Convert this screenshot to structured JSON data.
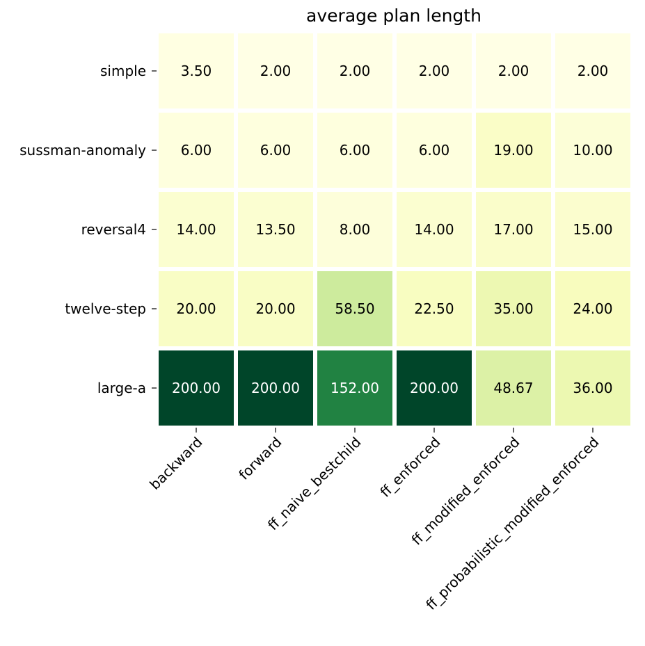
{
  "chart_data": {
    "type": "heatmap",
    "title": "average plan length",
    "xlabel": "",
    "ylabel": "",
    "x_categories": [
      "backward",
      "forward",
      "ff_naive_bestchild",
      "ff_enforced",
      "ff_modified_enforced",
      "ff_probabilistic_modified_enforced"
    ],
    "y_categories": [
      "simple",
      "sussman-anomaly",
      "reversal4",
      "twelve-step",
      "large-a"
    ],
    "values": [
      [
        3.5,
        2.0,
        2.0,
        2.0,
        2.0,
        2.0
      ],
      [
        6.0,
        6.0,
        6.0,
        6.0,
        19.0,
        10.0
      ],
      [
        14.0,
        13.5,
        8.0,
        14.0,
        17.0,
        15.0
      ],
      [
        20.0,
        20.0,
        58.5,
        22.5,
        35.0,
        24.0
      ],
      [
        200.0,
        200.0,
        152.0,
        200.0,
        48.67,
        36.0
      ]
    ],
    "value_labels": [
      [
        "3.50",
        "2.00",
        "2.00",
        "2.00",
        "2.00",
        "2.00"
      ],
      [
        "6.00",
        "6.00",
        "6.00",
        "6.00",
        "19.00",
        "10.00"
      ],
      [
        "14.00",
        "13.50",
        "8.00",
        "14.00",
        "17.00",
        "15.00"
      ],
      [
        "20.00",
        "20.00",
        "58.50",
        "22.50",
        "35.00",
        "24.00"
      ],
      [
        "200.00",
        "200.00",
        "152.00",
        "200.00",
        "48.67",
        "36.00"
      ]
    ],
    "colormap": "YlGn",
    "color_range": [
      2.0,
      200.0
    ],
    "grid": false,
    "legend": "none"
  }
}
